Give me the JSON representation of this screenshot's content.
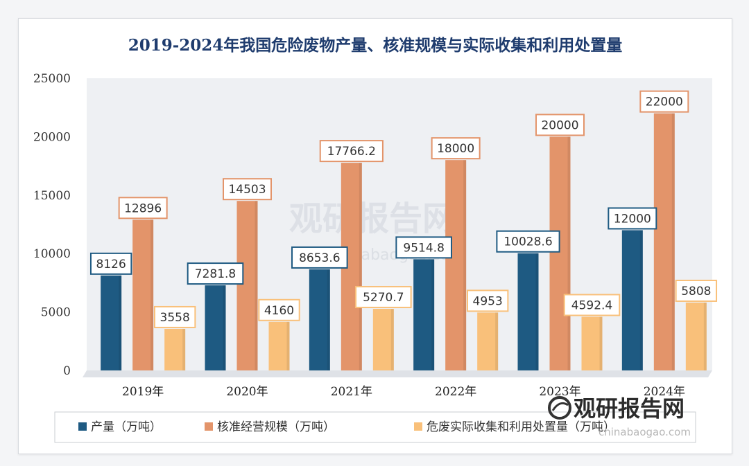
{
  "chart_data": {
    "type": "bar",
    "title": "2019-2024年我国危险废物产量、核准规模与实际收集和利用处置量",
    "categories": [
      "2019年",
      "2020年",
      "2021年",
      "2022年",
      "2023年",
      "2024年"
    ],
    "series": [
      {
        "name": "产量（万吨）",
        "color": "#1e5a82",
        "values": [
          8126,
          7281.8,
          8653.6,
          9514.8,
          10028.6,
          12000
        ],
        "labels": [
          "8126",
          "7281.8",
          "8653.6",
          "9514.8",
          "10028.6",
          "12000"
        ]
      },
      {
        "name": "核准经营规模（万吨）",
        "color": "#e3946a",
        "values": [
          12896,
          14503,
          17766.2,
          18000,
          20000,
          22000
        ],
        "labels": [
          "12896",
          "14503",
          "17766.2",
          "18000",
          "20000",
          "22000"
        ]
      },
      {
        "name": "危废实际收集和利用处置量（万吨）",
        "color": "#f9c07a",
        "values": [
          3558,
          4160,
          5270.7,
          4953,
          4592.4,
          5808
        ],
        "labels": [
          "3558",
          "4160",
          "5270.7",
          "4953",
          "4592.4",
          "5808"
        ]
      }
    ],
    "ylim": [
      0,
      25000
    ],
    "yticks": [
      0,
      5000,
      10000,
      15000,
      20000,
      25000
    ],
    "grid": false,
    "legend_position": "bottom",
    "xlabel": "",
    "ylabel": ""
  },
  "watermark": {
    "center_text": "观研报告网",
    "center_url": "chinabaogao.com",
    "corner_text": "观研报告网",
    "corner_url": "chinabaogao.com"
  }
}
